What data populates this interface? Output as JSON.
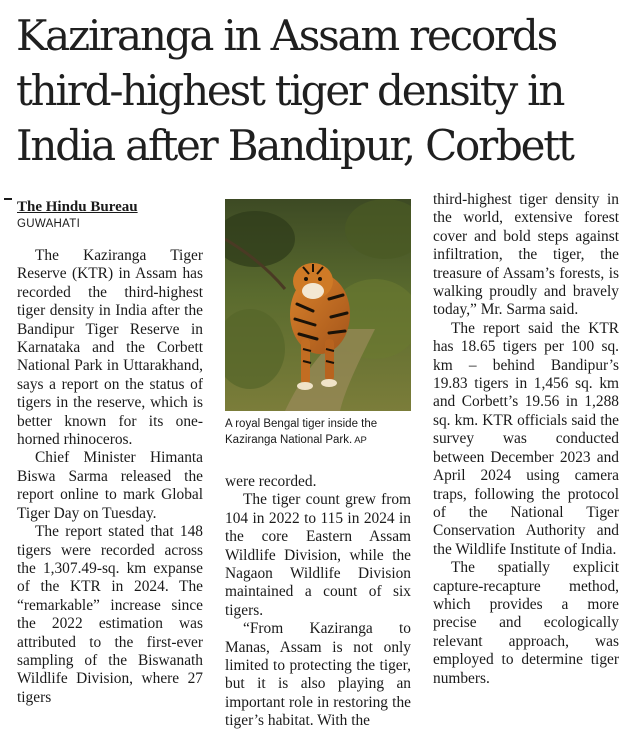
{
  "article": {
    "headline_lines": [
      "Kaziranga in Assam records",
      "third-highest tiger density in",
      "India after Bandipur, Corbett"
    ],
    "byline": "The Hindu Bureau",
    "dateline": "GUWAHATI",
    "col1_paragraphs": [
      "The Kaziranga Tiger Reserve (KTR) in Assam has recorded the third-highest tiger density in India after the Bandipur Tiger Reserve in Karnataka and the Corbett National Park in Uttarakhand, says a report on the status of tigers in the reserve, which is better known for its one-horned rhinoceros.",
      "Chief Minister Himanta Biswa Sarma released the report online to mark Global Tiger Day on Tuesday.",
      "The report stated that 148 tigers were recorded across the 1,307.49-sq. km expanse of the KTR in 2024. The “remarkable” increase since the 2022 estimation was attributed to the first-ever sampling of the Biswanath Wildlife Division, where 27 tigers"
    ],
    "photo_caption": "A royal Bengal tiger inside the Kaziranga National Park.",
    "photo_credit": "AP",
    "col2_paragraphs": [
      "were recorded.",
      "The tiger count grew from 104 in 2022 to 115 in 2024 in the core Eastern Assam Wildlife Division, while the Nagaon Wildlife Division maintained a count of six tigers.",
      "“From Kaziranga to Manas, Assam is not only limited to protecting the tiger, but it is also playing an important role in restoring the tiger’s habitat. With the"
    ],
    "col3_paragraphs": [
      "third-highest tiger density in the world, extensive forest cover and bold steps against infiltration, the tiger, the treasure of Assam’s forests, is walking proudly and bravely today,” Mr. Sarma said.",
      "The report said the KTR has 18.65 tigers per 100 sq. km – behind Bandipur’s 19.83 tigers in 1,456 sq. km and Corbett’s 19.56 in 1,288 sq. km. KTR officials said the survey was conducted between December 2023 and April 2024 using camera traps, following the protocol of the National Tiger Conservation Authority and the Wildlife Institute of India.",
      "The spatially explicit capture-recapture method, which provides a more precise and ecologically relevant approach, was employed to determine tiger numbers."
    ]
  }
}
